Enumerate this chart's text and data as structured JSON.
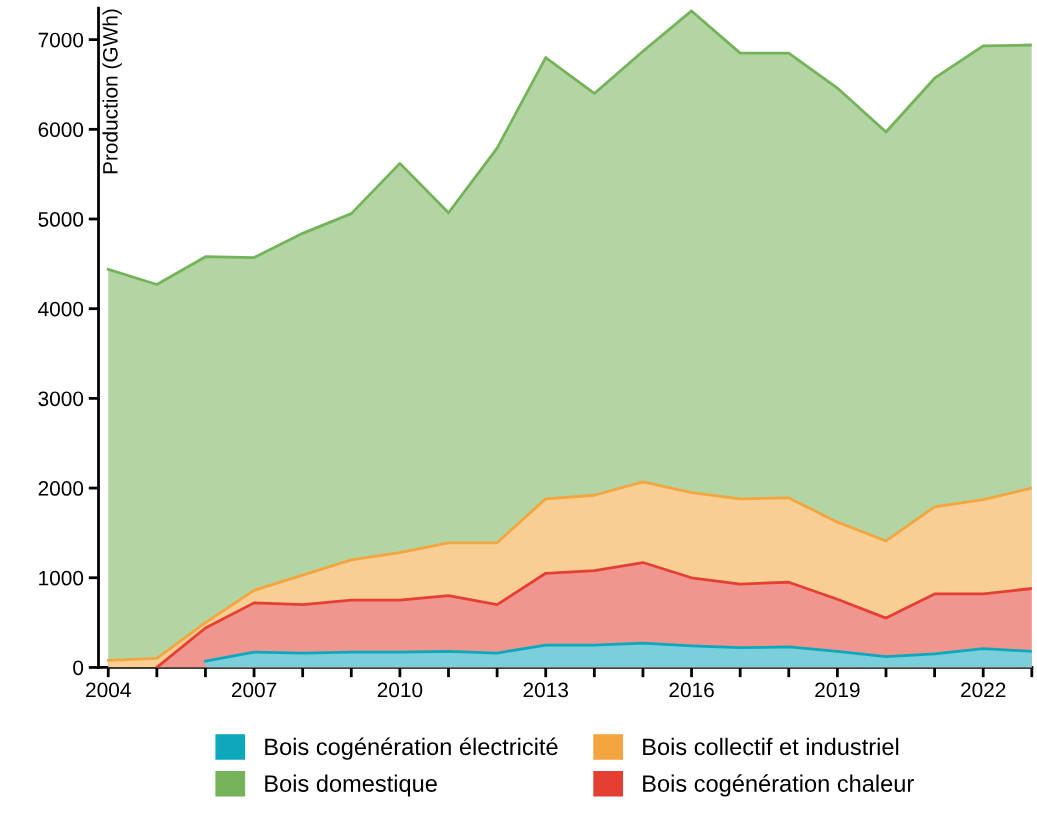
{
  "chart_data": {
    "type": "area",
    "ylabel": "Production (GWh)",
    "x": [
      2004,
      2005,
      2006,
      2007,
      2008,
      2009,
      2010,
      2011,
      2012,
      2013,
      2014,
      2015,
      2016,
      2017,
      2018,
      2019,
      2020,
      2021,
      2022,
      2023
    ],
    "series": [
      {
        "name": "Bois cogénération électricité",
        "color": "#0ea8bd",
        "values": [
          null,
          null,
          70,
          170,
          160,
          170,
          170,
          180,
          160,
          250,
          250,
          270,
          240,
          220,
          230,
          180,
          120,
          150,
          210,
          180
        ]
      },
      {
        "name": "Bois collectif et industriel",
        "color": "#f4a53f",
        "values": [
          80,
          100,
          500,
          860,
          1030,
          1200,
          1280,
          1390,
          1390,
          1880,
          1920,
          2070,
          1950,
          1880,
          1890,
          1620,
          1410,
          1790,
          1870,
          2000
        ]
      },
      {
        "name": "Bois domestique",
        "color": "#74b35a",
        "values": [
          4440,
          4270,
          4580,
          4570,
          4840,
          5060,
          5620,
          5070,
          5790,
          6800,
          6400,
          6870,
          7320,
          6850,
          6850,
          6460,
          5970,
          6570,
          6930,
          6940
        ]
      },
      {
        "name": "Bois cogénération chaleur",
        "color": "#e53f33",
        "values": [
          null,
          0,
          440,
          720,
          700,
          750,
          750,
          800,
          700,
          1050,
          1080,
          1170,
          1000,
          930,
          950,
          760,
          550,
          820,
          820,
          880
        ]
      }
    ],
    "xlim": [
      2003.8,
      2023
    ],
    "xticks": [
      2004,
      {
        "value": 2005,
        "label": null
      },
      {
        "value": 2006,
        "label": null
      },
      2007,
      {
        "value": 2008,
        "label": null
      },
      {
        "value": 2009,
        "label": null
      },
      2010,
      {
        "value": 2011,
        "label": null
      },
      {
        "value": 2012,
        "label": null
      },
      2013,
      {
        "value": 2014,
        "label": null
      },
      {
        "value": 2015,
        "label": null
      },
      2016,
      {
        "value": 2017,
        "label": null
      },
      {
        "value": 2018,
        "label": null
      },
      2019,
      {
        "value": 2020,
        "label": null
      },
      {
        "value": 2021,
        "label": null
      },
      2022,
      {
        "value": 2023,
        "label": null
      }
    ],
    "ylim": [
      0,
      7350
    ],
    "yticks": [
      0,
      1000,
      2000,
      3000,
      4000,
      5000,
      6000,
      7000
    ],
    "legend": "bottom",
    "grid": false
  }
}
